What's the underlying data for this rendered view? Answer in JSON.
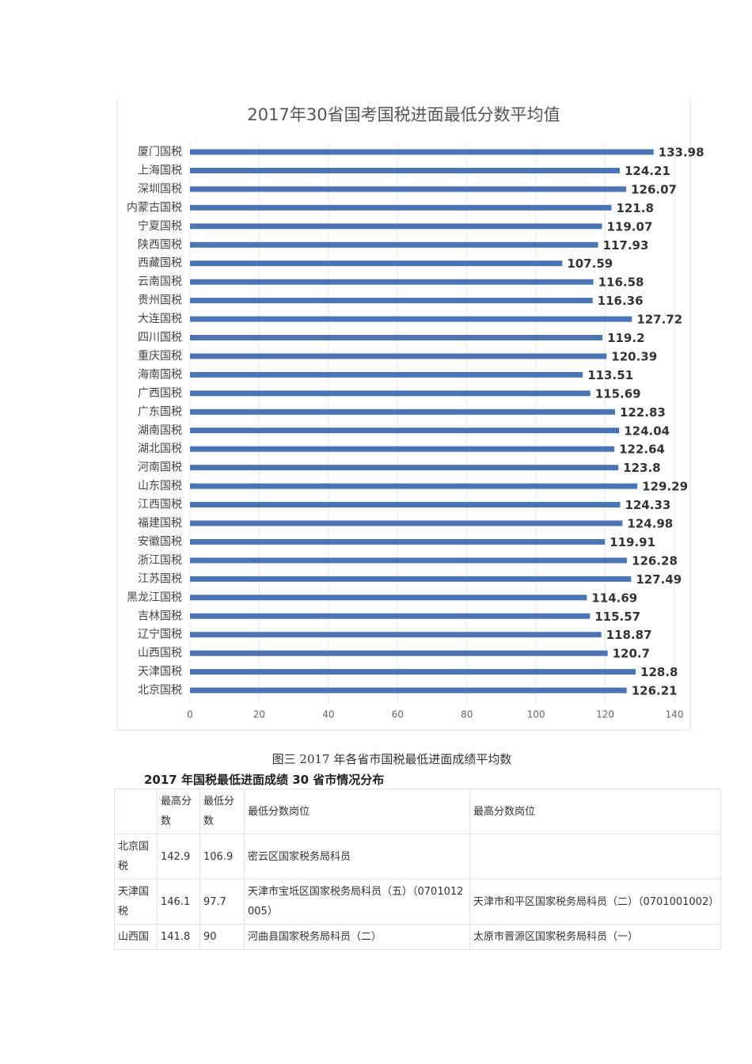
{
  "chart_data": {
    "type": "hbar",
    "title": "2017年30省国考国税进面最低分数平均值",
    "categories": [
      "厦门国税",
      "上海国税",
      "深圳国税",
      "内蒙古国税",
      "宁夏国税",
      "陕西国税",
      "西藏国税",
      "云南国税",
      "贵州国税",
      "大连国税",
      "四川国税",
      "重庆国税",
      "海南国税",
      "广西国税",
      "广东国税",
      "湖南国税",
      "湖北国税",
      "河南国税",
      "山东国税",
      "江西国税",
      "福建国税",
      "安徽国税",
      "浙江国税",
      "江苏国税",
      "黑龙江国税",
      "吉林国税",
      "辽宁国税",
      "山西国税",
      "天津国税",
      "北京国税"
    ],
    "values": [
      133.98,
      124.21,
      126.07,
      121.8,
      119.07,
      117.93,
      107.59,
      116.58,
      116.36,
      127.72,
      119.2,
      120.39,
      113.51,
      115.69,
      122.83,
      124.04,
      122.64,
      123.8,
      129.29,
      124.33,
      124.98,
      119.91,
      126.28,
      127.49,
      114.69,
      115.57,
      118.87,
      120.7,
      128.8,
      126.21
    ],
    "color": "#4a74b4",
    "xlim": [
      0,
      140
    ],
    "xticks": [
      0,
      20,
      40,
      60,
      80,
      100,
      120,
      140
    ],
    "grid": true
  },
  "caption": "图三 2017 年各省市国税最低进面成绩平均数",
  "subtitle": "2017 年国税最低进面成绩 30 省市情况分布",
  "table": {
    "header": [
      "最高分数",
      "最低分数",
      "最低分数岗位",
      "最高分数岗位"
    ],
    "rows": [
      [
        "北京国税",
        142.9,
        106.9,
        "密云区国家税务局科员"
      ],
      [
        "天津国税",
        146.1,
        97.7,
        "天津市宝坻区国家税务局科员（五）（0701012005）",
        "天津市和平区国家税务局科员（二）（0701001002）"
      ],
      [
        "山西国",
        141.8,
        90,
        "河曲县国家税务局科员（二）",
        "太原市晋源区国家税务局科员（一）"
      ]
    ]
  }
}
